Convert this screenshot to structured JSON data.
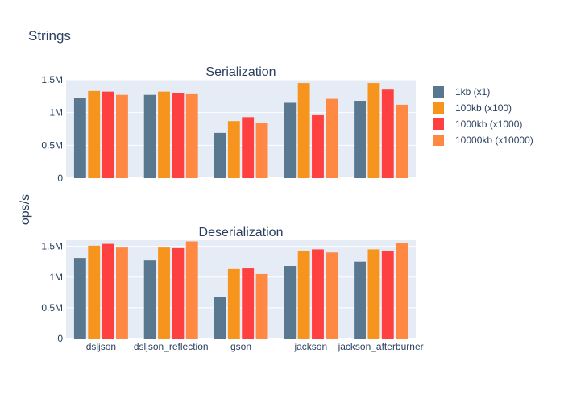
{
  "chart_data": {
    "type": "bar",
    "title": "Strings",
    "ylabel": "ops/s",
    "categories": [
      "dsljson",
      "dsljson_reflection",
      "gson",
      "jackson",
      "jackson_afterburner"
    ],
    "series_colors": [
      "#5a7790",
      "#f7941d",
      "#ff4040",
      "#ff8843"
    ],
    "legend": {
      "placement": "right",
      "entries": [
        "1kb (x1)",
        "100kb (x100)",
        "1000kb (x1000)",
        "10000kb (x10000)"
      ]
    },
    "subplots": [
      {
        "title": "Serialization",
        "ylim": [
          0,
          1500000
        ],
        "yticks": [
          0,
          500000,
          1000000,
          1500000
        ],
        "ytick_labels": [
          "0",
          "0.5M",
          "1M",
          "1.5M"
        ],
        "grid": true,
        "series": [
          {
            "name": "1kb (x1)",
            "values": [
              1220000,
              1270000,
              690000,
              1150000,
              1180000
            ]
          },
          {
            "name": "100kb (x100)",
            "values": [
              1330000,
              1320000,
              870000,
              1450000,
              1450000
            ]
          },
          {
            "name": "1000kb (x1000)",
            "values": [
              1320000,
              1300000,
              930000,
              960000,
              1350000
            ]
          },
          {
            "name": "10000kb (x10000)",
            "values": [
              1270000,
              1280000,
              840000,
              1210000,
              1120000
            ]
          }
        ]
      },
      {
        "title": "Deserialization",
        "ylim": [
          0,
          1600000
        ],
        "yticks": [
          0,
          500000,
          1000000,
          1500000
        ],
        "ytick_labels": [
          "0",
          "0.5M",
          "1M",
          "1.5M"
        ],
        "grid": true,
        "series": [
          {
            "name": "1kb (x1)",
            "values": [
              1310000,
              1270000,
              670000,
              1180000,
              1250000
            ]
          },
          {
            "name": "100kb (x100)",
            "values": [
              1510000,
              1480000,
              1130000,
              1430000,
              1450000
            ]
          },
          {
            "name": "1000kb (x1000)",
            "values": [
              1540000,
              1470000,
              1140000,
              1450000,
              1430000
            ]
          },
          {
            "name": "10000kb (x10000)",
            "values": [
              1480000,
              1580000,
              1050000,
              1400000,
              1550000
            ]
          }
        ]
      }
    ]
  }
}
